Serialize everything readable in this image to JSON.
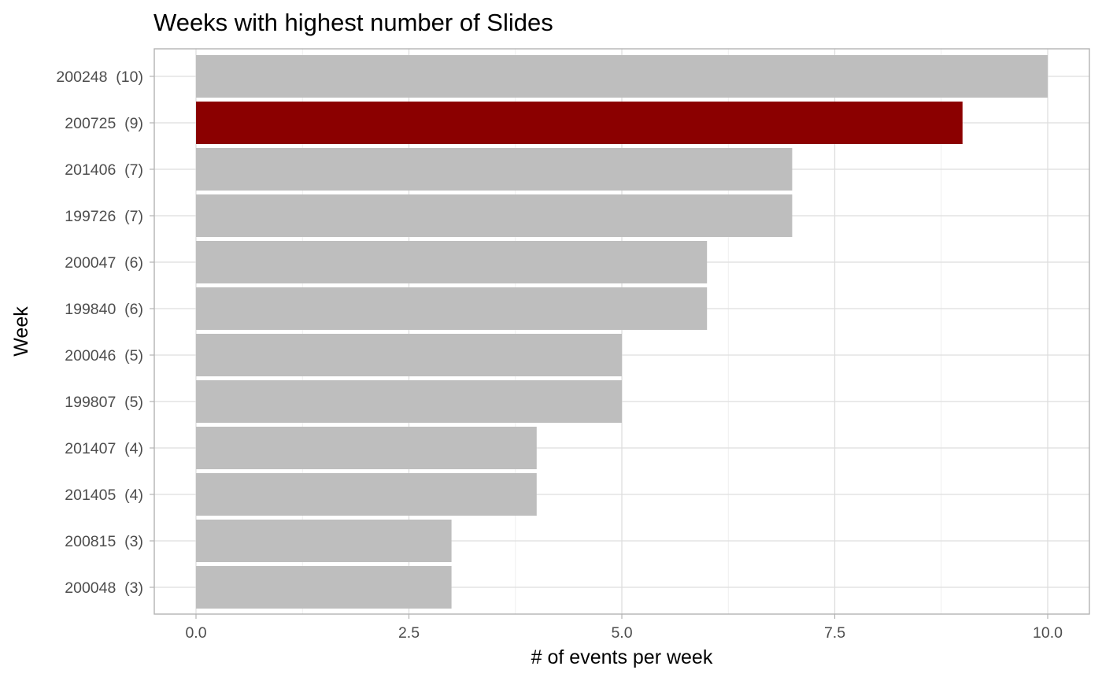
{
  "chart_data": {
    "type": "bar",
    "orientation": "horizontal",
    "title": "Weeks with highest number of Slides",
    "xlabel": "# of events per week",
    "ylabel": "Week",
    "xlim": [
      0,
      10
    ],
    "x_ticks": [
      0,
      2.5,
      5,
      7.5,
      10
    ],
    "x_tick_labels": [
      "0.0",
      "2.5",
      "5.0",
      "7.5",
      "10.0"
    ],
    "grid": true,
    "categories": [
      "200248  (10)",
      "200725  (9)",
      "201406  (7)",
      "199726  (7)",
      "200047  (6)",
      "199840  (6)",
      "200046  (5)",
      "199807  (5)",
      "201407  (4)",
      "201405  (4)",
      "200815  (3)",
      "200048  (3)"
    ],
    "values": [
      10,
      9,
      7,
      7,
      6,
      6,
      5,
      5,
      4,
      4,
      3,
      3
    ],
    "highlight_index": 1,
    "colors": {
      "bar": "#bebebe",
      "highlight": "#8b0000",
      "grid_major": "#dedede",
      "grid_minor": "#ececec",
      "panel_border": "#b3b3b3",
      "tick_text": "#4d4d4d"
    }
  }
}
